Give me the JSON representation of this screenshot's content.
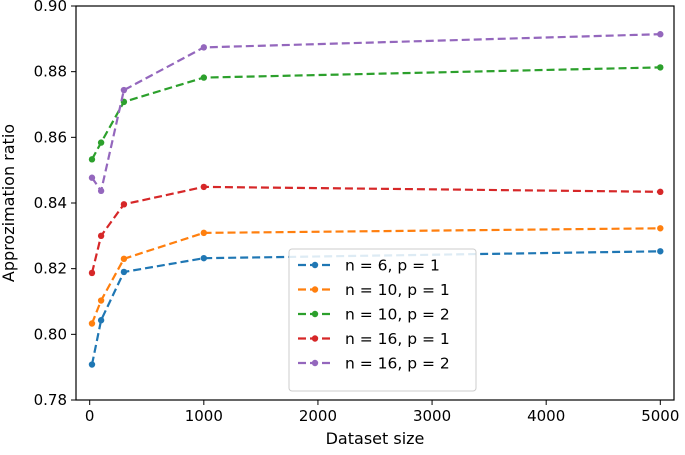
{
  "chart_data": {
    "type": "line",
    "xlabel": "Dataset size",
    "ylabel": "Approzimation ratio",
    "xlim": [
      -120,
      5120
    ],
    "ylim": [
      0.78,
      0.9
    ],
    "xticks": [
      0,
      1000,
      2000,
      3000,
      4000,
      5000
    ],
    "xtick_labels": [
      "0",
      "1000",
      "2000",
      "3000",
      "4000",
      "5000"
    ],
    "yticks": [
      0.78,
      0.8,
      0.82,
      0.84,
      0.86,
      0.88,
      0.9
    ],
    "ytick_labels": [
      "0.78",
      "0.80",
      "0.82",
      "0.84",
      "0.86",
      "0.88",
      "0.90"
    ],
    "grid": false,
    "legend_position": "lower-center",
    "x": [
      20,
      100,
      300,
      1000,
      5000
    ],
    "series": [
      {
        "name": "n = 6, p = 1",
        "color": "#1f77b4",
        "values": [
          0.7908,
          0.8043,
          0.819,
          0.8232,
          0.8253
        ]
      },
      {
        "name": "n = 10, p = 1",
        "color": "#ff7f0e",
        "values": [
          0.8033,
          0.8103,
          0.823,
          0.8309,
          0.8323
        ]
      },
      {
        "name": "n = 10, p = 2",
        "color": "#2ca02c",
        "values": [
          0.8533,
          0.8584,
          0.8708,
          0.8782,
          0.8813
        ]
      },
      {
        "name": "n = 16, p = 1",
        "color": "#d62728",
        "values": [
          0.8187,
          0.83,
          0.8396,
          0.8449,
          0.8434
        ]
      },
      {
        "name": "n = 16, p = 2",
        "color": "#9467bd",
        "values": [
          0.8477,
          0.8437,
          0.8744,
          0.8874,
          0.8914
        ]
      }
    ]
  }
}
